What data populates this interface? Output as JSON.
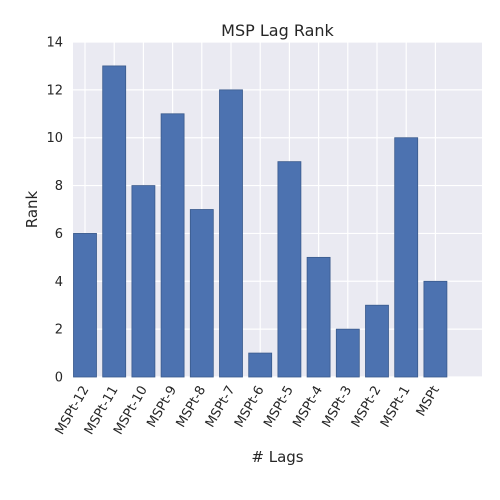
{
  "chart_data": {
    "type": "bar",
    "title": "MSP Lag Rank",
    "xlabel": "# Lags",
    "ylabel": "Rank",
    "categories": [
      "MSPt-12",
      "MSPt-11",
      "MSPt-10",
      "MSPt-9",
      "MSPt-8",
      "MSPt-7",
      "MSPt-6",
      "MSPt-5",
      "MSPt-4",
      "MSPt-3",
      "MSPt-2",
      "MSPt-1",
      "MSPt"
    ],
    "values": [
      6,
      13,
      8,
      11,
      7,
      12,
      1,
      9,
      5,
      2,
      3,
      10,
      4
    ],
    "ylim": [
      0,
      14
    ],
    "yticks": [
      0,
      2,
      4,
      6,
      8,
      10,
      12,
      14
    ],
    "grid": true,
    "legend": "none",
    "colors": {
      "bar": "#4c72b0",
      "bar_edge": "#3a5a8c",
      "plot_background": "#eaeaf2",
      "grid": "#ffffff"
    }
  }
}
